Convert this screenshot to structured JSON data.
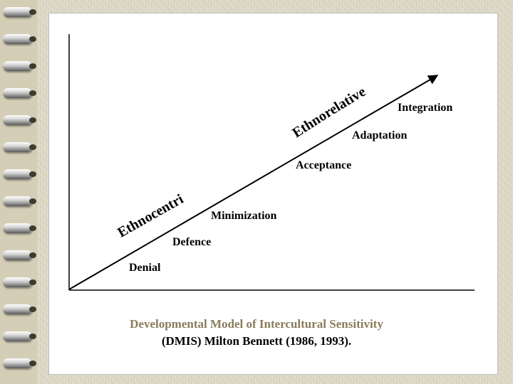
{
  "colors": {
    "background": "#ddd9c6",
    "slide": "#ffffff",
    "line": "#000000",
    "caption_title": "#8a7a5a",
    "caption_source": "#000000"
  },
  "decoration": {
    "binding_rings": 14
  },
  "diagram": {
    "stages": [
      "Denial",
      "Defence",
      "Minimization",
      "Acceptance",
      "Adaptation",
      "Integration"
    ],
    "groups": {
      "lower": "Ethnocentric",
      "upper": "Ethnorelative"
    },
    "arrow": "diagonal arrow rising from the origin to the upper right"
  },
  "caption": {
    "title": "Developmental Model of Intercultural Sensitivity",
    "source": "(DMIS) Milton Bennett (1986, 1993)."
  }
}
